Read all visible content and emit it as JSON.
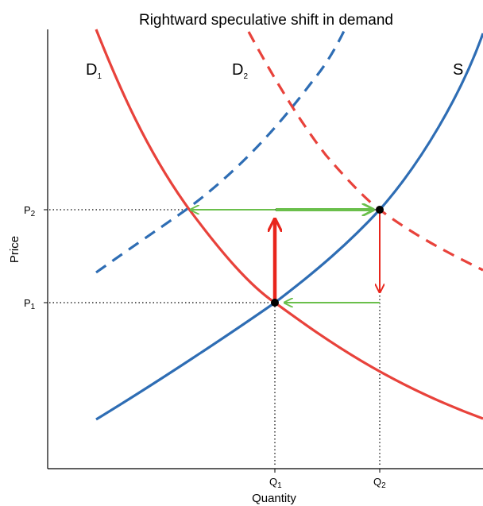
{
  "title": "Rightward speculative shift in demand",
  "axes": {
    "x_label": "Quantity",
    "y_label": "Price"
  },
  "curves": {
    "d1": {
      "letter": "D",
      "sub": "1",
      "color": "#e8423b",
      "style": "solid"
    },
    "d2": {
      "letter": "D",
      "sub": "2",
      "color": "#e8423b",
      "style": "dashed"
    },
    "s": {
      "letter": "S",
      "color": "#2e6db4",
      "style": "solid"
    },
    "s_shifted": {
      "color": "#2e6db4",
      "style": "dashed"
    }
  },
  "ticks": {
    "p1": {
      "letter": "P",
      "sub": "1"
    },
    "p2": {
      "letter": "P",
      "sub": "2"
    },
    "q1": {
      "letter": "Q",
      "sub": "1"
    },
    "q2": {
      "letter": "Q",
      "sub": "2"
    }
  },
  "arrow_colors": {
    "green": "#6abf4b",
    "red": "#e8251c"
  },
  "points_color": "#000000"
}
